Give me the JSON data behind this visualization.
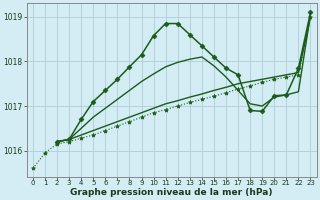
{
  "title": "Graphe pression niveau de la mer (hPa)",
  "bg_color": "#d4ecf4",
  "grid_color": "#b0cdd8",
  "line_color": "#1a5c1a",
  "xlim": [
    -0.5,
    23.5
  ],
  "ylim": [
    1015.4,
    1019.3
  ],
  "yticks": [
    1016,
    1017,
    1018,
    1019
  ],
  "xticks": [
    0,
    1,
    2,
    3,
    4,
    5,
    6,
    7,
    8,
    9,
    10,
    11,
    12,
    13,
    14,
    15,
    16,
    17,
    18,
    19,
    20,
    21,
    22,
    23
  ],
  "series": [
    {
      "x": [
        0,
        1,
        2,
        3,
        4,
        5,
        6,
        7,
        8,
        9,
        10,
        11,
        12,
        13,
        14,
        15,
        16,
        17,
        18,
        19,
        20,
        21,
        22,
        23
      ],
      "y": [
        1015.6,
        1015.95,
        1016.15,
        1016.2,
        1016.28,
        1016.35,
        1016.45,
        1016.55,
        1016.65,
        1016.75,
        1016.85,
        1016.92,
        1017.0,
        1017.08,
        1017.15,
        1017.22,
        1017.3,
        1017.38,
        1017.45,
        1017.53,
        1017.6,
        1017.65,
        1017.7,
        1019.0
      ],
      "marker": "*",
      "markersize": 3,
      "lw": 0.8,
      "ls": ":"
    },
    {
      "x": [
        2,
        3,
        4,
        5,
        6,
        7,
        8,
        9,
        10,
        11,
        12,
        13,
        14,
        15,
        16,
        17,
        18,
        19,
        20,
        21,
        22,
        23
      ],
      "y": [
        1016.2,
        1016.25,
        1016.35,
        1016.45,
        1016.55,
        1016.65,
        1016.75,
        1016.85,
        1016.95,
        1017.05,
        1017.12,
        1017.2,
        1017.27,
        1017.35,
        1017.42,
        1017.5,
        1017.55,
        1017.6,
        1017.65,
        1017.7,
        1017.75,
        1019.0
      ],
      "marker": null,
      "markersize": 0,
      "lw": 1.0,
      "ls": "-"
    },
    {
      "x": [
        2,
        3,
        4,
        5,
        6,
        7,
        8,
        9,
        10,
        11,
        12,
        13,
        14,
        15,
        16,
        17,
        18,
        19,
        20,
        21,
        22,
        23
      ],
      "y": [
        1016.2,
        1016.25,
        1016.5,
        1016.75,
        1016.95,
        1017.15,
        1017.35,
        1017.55,
        1017.72,
        1017.88,
        1017.98,
        1018.05,
        1018.1,
        1017.9,
        1017.65,
        1017.35,
        1017.05,
        1017.0,
        1017.2,
        1017.25,
        1017.32,
        1019.05
      ],
      "marker": null,
      "markersize": 0,
      "lw": 1.0,
      "ls": "-"
    },
    {
      "x": [
        2,
        3,
        4,
        5,
        6,
        7,
        8,
        9,
        10,
        11,
        12,
        13,
        14,
        15,
        16,
        17,
        18,
        19,
        20,
        21,
        22,
        23
      ],
      "y": [
        1016.2,
        1016.25,
        1016.7,
        1017.1,
        1017.35,
        1017.6,
        1017.88,
        1018.15,
        1018.58,
        1018.85,
        1018.85,
        1018.6,
        1018.35,
        1018.1,
        1017.85,
        1017.7,
        1016.9,
        1016.88,
        1017.23,
        1017.25,
        1017.85,
        1019.1
      ],
      "marker": "D",
      "markersize": 2.5,
      "lw": 1.1,
      "ls": "-"
    }
  ]
}
